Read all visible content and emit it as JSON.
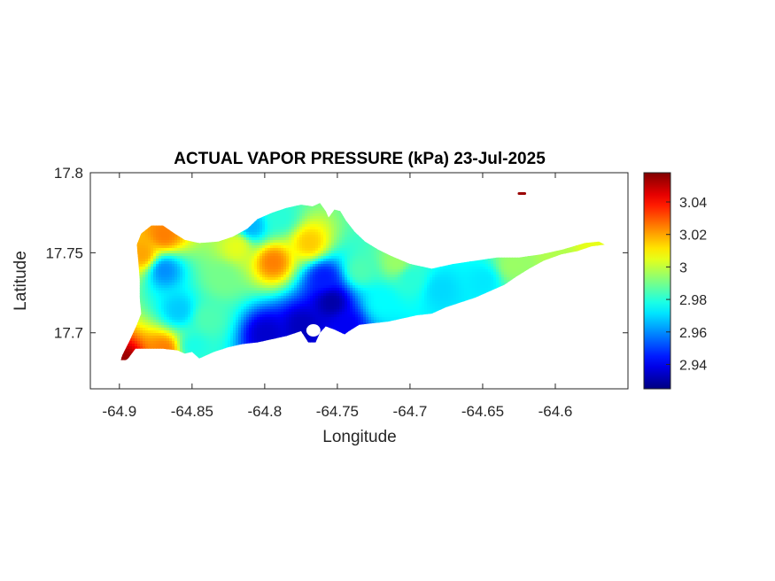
{
  "chart_data": {
    "type": "heatmap",
    "title": "ACTUAL VAPOR PRESSURE (kPa) 23-Jul-2025",
    "xlabel": "Longitude",
    "ylabel": "Latitude",
    "xlim": [
      -64.92,
      -64.55
    ],
    "ylim": [
      17.665,
      17.8
    ],
    "xticks": [
      -64.9,
      -64.85,
      -64.8,
      -64.75,
      -64.7,
      -64.65,
      -64.6
    ],
    "xtick_labels": [
      "-64.9",
      "-64.85",
      "-64.8",
      "-64.75",
      "-64.7",
      "-64.65",
      "-64.6"
    ],
    "yticks": [
      17.7,
      17.75,
      17.8
    ],
    "ytick_labels": [
      "17.7",
      "17.75",
      "17.8"
    ],
    "colorbar": {
      "colormap": "jet",
      "range": [
        2.925,
        3.058
      ],
      "ticks": [
        2.94,
        2.96,
        2.98,
        3.0,
        3.02,
        3.04
      ],
      "tick_labels": [
        "2.94",
        "2.96",
        "2.98",
        "3",
        "3.02",
        "3.04"
      ]
    },
    "grid": false,
    "island_outline": [
      [
        -64.9,
        17.68
      ],
      [
        -64.894,
        17.684
      ],
      [
        -64.889,
        17.69
      ],
      [
        -64.885,
        17.69
      ],
      [
        -64.88,
        17.69
      ],
      [
        -64.87,
        17.69
      ],
      [
        -64.86,
        17.689
      ],
      [
        -64.855,
        17.687
      ],
      [
        -64.85,
        17.688
      ],
      [
        -64.845,
        17.684
      ],
      [
        -64.835,
        17.688
      ],
      [
        -64.825,
        17.691
      ],
      [
        -64.815,
        17.693
      ],
      [
        -64.805,
        17.694
      ],
      [
        -64.795,
        17.696
      ],
      [
        -64.785,
        17.698
      ],
      [
        -64.775,
        17.701
      ],
      [
        -64.77,
        17.694
      ],
      [
        -64.765,
        17.694
      ],
      [
        -64.762,
        17.7
      ],
      [
        -64.758,
        17.704
      ],
      [
        -64.752,
        17.702
      ],
      [
        -64.745,
        17.699
      ],
      [
        -64.742,
        17.701
      ],
      [
        -64.735,
        17.705
      ],
      [
        -64.725,
        17.706
      ],
      [
        -64.715,
        17.707
      ],
      [
        -64.705,
        17.709
      ],
      [
        -64.695,
        17.711
      ],
      [
        -64.685,
        17.712
      ],
      [
        -64.675,
        17.716
      ],
      [
        -64.665,
        17.719
      ],
      [
        -64.655,
        17.722
      ],
      [
        -64.645,
        17.726
      ],
      [
        -64.635,
        17.73
      ],
      [
        -64.627,
        17.735
      ],
      [
        -64.618,
        17.74
      ],
      [
        -64.608,
        17.745
      ],
      [
        -64.596,
        17.749
      ],
      [
        -64.585,
        17.751
      ],
      [
        -64.575,
        17.754
      ],
      [
        -64.566,
        17.755
      ],
      [
        -64.57,
        17.757
      ],
      [
        -64.58,
        17.756
      ],
      [
        -64.595,
        17.752
      ],
      [
        -64.61,
        17.749
      ],
      [
        -64.625,
        17.747
      ],
      [
        -64.64,
        17.747
      ],
      [
        -64.655,
        17.745
      ],
      [
        -64.67,
        17.743
      ],
      [
        -64.685,
        17.74
      ],
      [
        -64.7,
        17.743
      ],
      [
        -64.713,
        17.748
      ],
      [
        -64.722,
        17.752
      ],
      [
        -64.731,
        17.757
      ],
      [
        -64.738,
        17.763
      ],
      [
        -64.744,
        17.77
      ],
      [
        -64.748,
        17.776
      ],
      [
        -64.752,
        17.777
      ],
      [
        -64.756,
        17.772
      ],
      [
        -64.758,
        17.776
      ],
      [
        -64.762,
        17.781
      ],
      [
        -64.767,
        17.779
      ],
      [
        -64.775,
        17.78
      ],
      [
        -64.785,
        17.778
      ],
      [
        -64.795,
        17.775
      ],
      [
        -64.805,
        17.771
      ],
      [
        -64.812,
        17.765
      ],
      [
        -64.822,
        17.76
      ],
      [
        -64.832,
        17.757
      ],
      [
        -64.845,
        17.756
      ],
      [
        -64.855,
        17.758
      ],
      [
        -64.862,
        17.762
      ],
      [
        -64.87,
        17.767
      ],
      [
        -64.878,
        17.767
      ],
      [
        -64.885,
        17.762
      ],
      [
        -64.888,
        17.755
      ],
      [
        -64.887,
        17.745
      ],
      [
        -64.886,
        17.733
      ],
      [
        -64.886,
        17.722
      ],
      [
        -64.885,
        17.712
      ],
      [
        -64.888,
        17.705
      ],
      [
        -64.893,
        17.695
      ],
      [
        -64.898,
        17.686
      ]
    ],
    "islet": [
      [
        -64.625,
        17.787
      ],
      [
        -64.621,
        17.787
      ]
    ],
    "value_field": [
      {
        "lon": -64.87,
        "lat": 17.74,
        "value": 2.96
      },
      {
        "lon": -64.86,
        "lat": 17.715,
        "value": 2.968
      },
      {
        "lon": -64.885,
        "lat": 17.75,
        "value": 3.02
      },
      {
        "lon": -64.87,
        "lat": 17.762,
        "value": 3.025
      },
      {
        "lon": -64.897,
        "lat": 17.681,
        "value": 3.055
      },
      {
        "lon": -64.87,
        "lat": 17.69,
        "value": 3.025
      },
      {
        "lon": -64.8,
        "lat": 17.7,
        "value": 2.935
      },
      {
        "lon": -64.775,
        "lat": 17.705,
        "value": 2.933
      },
      {
        "lon": -64.755,
        "lat": 17.72,
        "value": 2.93
      },
      {
        "lon": -64.76,
        "lat": 17.735,
        "value": 2.945
      },
      {
        "lon": -64.745,
        "lat": 17.705,
        "value": 2.94
      },
      {
        "lon": -64.795,
        "lat": 17.745,
        "value": 3.025
      },
      {
        "lon": -64.77,
        "lat": 17.757,
        "value": 3.015
      },
      {
        "lon": -64.82,
        "lat": 17.755,
        "value": 3.005
      },
      {
        "lon": -64.81,
        "lat": 17.767,
        "value": 2.965
      },
      {
        "lon": -64.79,
        "lat": 17.773,
        "value": 2.98
      },
      {
        "lon": -64.7,
        "lat": 17.735,
        "value": 2.98
      },
      {
        "lon": -64.72,
        "lat": 17.72,
        "value": 2.975
      },
      {
        "lon": -64.68,
        "lat": 17.728,
        "value": 2.97
      },
      {
        "lon": -64.65,
        "lat": 17.733,
        "value": 2.972
      },
      {
        "lon": -64.63,
        "lat": 17.743,
        "value": 2.995
      },
      {
        "lon": -64.6,
        "lat": 17.75,
        "value": 2.998
      },
      {
        "lon": -64.575,
        "lat": 17.755,
        "value": 3.005
      },
      {
        "lon": -64.84,
        "lat": 17.71,
        "value": 2.985
      },
      {
        "lon": -64.83,
        "lat": 17.735,
        "value": 2.99
      },
      {
        "lon": -64.71,
        "lat": 17.745,
        "value": 2.995
      },
      {
        "lon": -64.735,
        "lat": 17.74,
        "value": 2.985
      },
      {
        "lon": -64.85,
        "lat": 17.692,
        "value": 2.978
      },
      {
        "lon": -64.623,
        "lat": 17.787,
        "value": 3.058
      }
    ]
  }
}
